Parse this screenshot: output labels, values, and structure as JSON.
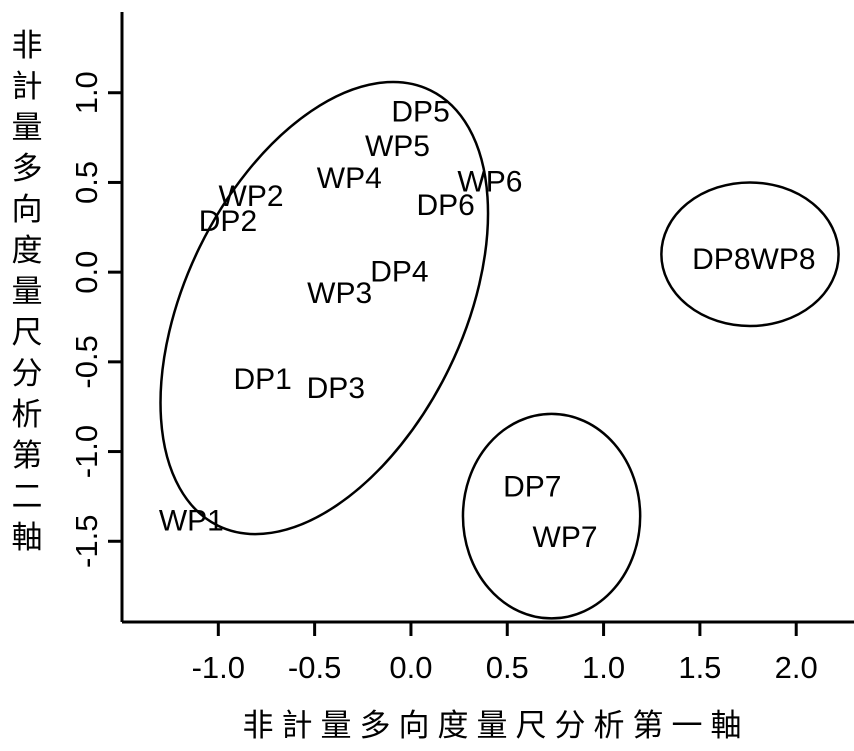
{
  "chart_data": {
    "type": "scatter",
    "title": "",
    "xlabel": "非計量多向度量尺分析第一軸",
    "ylabel": "非計量多向度量尺分析第二軸",
    "xlim": [
      -1.5,
      2.3
    ],
    "ylim": [
      -1.95,
      1.45
    ],
    "x_ticks": [
      -1.0,
      -0.5,
      0.0,
      0.5,
      1.0,
      1.5,
      2.0
    ],
    "x_tick_labels": [
      "-1.0",
      "-0.5",
      "0.0",
      "0.5",
      "1.0",
      "1.5",
      "2.0"
    ],
    "y_ticks": [
      -1.5,
      -1.0,
      -0.5,
      0.0,
      0.5,
      1.0
    ],
    "y_tick_labels": [
      "-1.5",
      "-1.0",
      "-0.5",
      "0.0",
      "0.5",
      "1.0"
    ],
    "grid": false,
    "points": [
      {
        "label": "DP5",
        "x": 0.05,
        "y": 0.9
      },
      {
        "label": "WP5",
        "x": -0.07,
        "y": 0.71
      },
      {
        "label": "WP4",
        "x": -0.32,
        "y": 0.53
      },
      {
        "label": "WP6",
        "x": 0.41,
        "y": 0.51
      },
      {
        "label": "WP2",
        "x": -0.83,
        "y": 0.43
      },
      {
        "label": "DP6",
        "x": 0.18,
        "y": 0.38
      },
      {
        "label": "DP2",
        "x": -0.95,
        "y": 0.29
      },
      {
        "label": "DP4",
        "x": -0.06,
        "y": 0.01
      },
      {
        "label": "WP3",
        "x": -0.37,
        "y": -0.11
      },
      {
        "label": "DP1",
        "x": -0.77,
        "y": -0.59
      },
      {
        "label": "DP3",
        "x": -0.39,
        "y": -0.64
      },
      {
        "label": "WP1",
        "x": -1.14,
        "y": -1.38
      },
      {
        "label": "DP8WP8",
        "x": 1.78,
        "y": 0.08
      },
      {
        "label": "DP7",
        "x": 0.63,
        "y": -1.19
      },
      {
        "label": "WP7",
        "x": 0.8,
        "y": -1.47
      }
    ],
    "groups": [
      {
        "cx": -0.45,
        "cy": -0.2,
        "rx": 0.72,
        "ry": 1.35,
        "rotation_deg": 26
      },
      {
        "cx": 1.76,
        "cy": 0.1,
        "rx": 0.46,
        "ry": 0.4,
        "rotation_deg": 0
      },
      {
        "cx": 0.73,
        "cy": -1.36,
        "rx": 0.46,
        "ry": 0.57,
        "rotation_deg": 0
      }
    ]
  }
}
